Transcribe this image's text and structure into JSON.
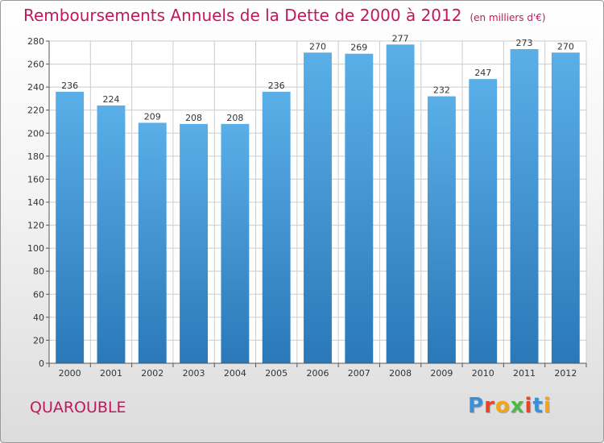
{
  "title": "Remboursements Annuels de la Dette de 2000 à 2012",
  "unit": "(en milliers d'€)",
  "commune": "QUAROUBLE",
  "logo": {
    "text": "Proxiti",
    "colors": [
      "#3a8fd6",
      "#e8442a",
      "#f2a516",
      "#4db848",
      "#e8442a",
      "#3a8fd6",
      "#f2a516"
    ]
  },
  "colors": {
    "bar_top": "#5aafe8",
    "bar_bottom": "#2a78b8",
    "title": "#c2185b",
    "grid": "#cccccc"
  },
  "chart_data": {
    "type": "bar",
    "categories": [
      "2000",
      "2001",
      "2002",
      "2003",
      "2004",
      "2005",
      "2006",
      "2007",
      "2008",
      "2009",
      "2010",
      "2011",
      "2012"
    ],
    "values": [
      236,
      224,
      209,
      208,
      208,
      236,
      270,
      269,
      277,
      232,
      247,
      273,
      270
    ],
    "ylim": [
      0,
      280
    ],
    "yticks": [
      0,
      20,
      40,
      60,
      80,
      100,
      120,
      140,
      160,
      180,
      200,
      220,
      240,
      260,
      280
    ],
    "grid": true
  }
}
